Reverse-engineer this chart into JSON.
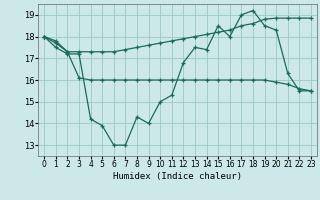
{
  "xlabel": "Humidex (Indice chaleur)",
  "ylabel": "",
  "background_color": "#cce8e8",
  "grid_color": "#99ccbb",
  "line_color": "#1a6b5a",
  "xlim": [
    -0.5,
    23.5
  ],
  "ylim": [
    12.5,
    19.5
  ],
  "yticks": [
    13,
    14,
    15,
    16,
    17,
    18,
    19
  ],
  "xticks": [
    0,
    1,
    2,
    3,
    4,
    5,
    6,
    7,
    8,
    9,
    10,
    11,
    12,
    13,
    14,
    15,
    16,
    17,
    18,
    19,
    20,
    21,
    22,
    23
  ],
  "line1_x": [
    0,
    1,
    2,
    3,
    4,
    5,
    6,
    7,
    8,
    9,
    10,
    11,
    12,
    13,
    14,
    15,
    16,
    17,
    18,
    19,
    20,
    21,
    22,
    23
  ],
  "line1_y": [
    18.0,
    17.5,
    17.2,
    17.2,
    14.2,
    13.9,
    13.0,
    13.0,
    14.3,
    14.0,
    15.0,
    15.3,
    16.8,
    17.5,
    17.4,
    18.5,
    18.0,
    19.0,
    19.2,
    18.5,
    18.3,
    16.3,
    15.5,
    15.5
  ],
  "line2_x": [
    0,
    1,
    2,
    3,
    4,
    5,
    6,
    7,
    8,
    9,
    10,
    11,
    12,
    13,
    14,
    15,
    16,
    17,
    18,
    19,
    20,
    21,
    22,
    23
  ],
  "line2_y": [
    18.0,
    17.8,
    17.3,
    17.3,
    17.3,
    17.3,
    17.3,
    17.4,
    17.5,
    17.6,
    17.7,
    17.8,
    17.9,
    18.0,
    18.1,
    18.2,
    18.3,
    18.5,
    18.6,
    18.8,
    18.85,
    18.85,
    18.85,
    18.85
  ],
  "line3_x": [
    0,
    1,
    2,
    3,
    4,
    5,
    6,
    7,
    8,
    9,
    10,
    11,
    12,
    13,
    14,
    15,
    16,
    17,
    18,
    19,
    20,
    21,
    22,
    23
  ],
  "line3_y": [
    18.0,
    17.7,
    17.3,
    16.1,
    16.0,
    16.0,
    16.0,
    16.0,
    16.0,
    16.0,
    16.0,
    16.0,
    16.0,
    16.0,
    16.0,
    16.0,
    16.0,
    16.0,
    16.0,
    16.0,
    15.9,
    15.8,
    15.6,
    15.5
  ]
}
